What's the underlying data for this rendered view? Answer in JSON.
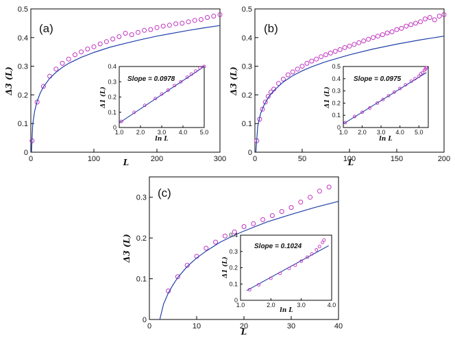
{
  "colors": {
    "theory": "#1f3fa8",
    "data": "#c030c0",
    "axis": "#000000"
  },
  "chart_data": [
    {
      "type": "scatter",
      "panel_label": "(a)",
      "xlabel": "L",
      "ylabel": "Δ3 (L)",
      "xlim": [
        0,
        300
      ],
      "ylim": [
        0,
        0.5
      ],
      "xticks": [
        "0",
        "100",
        "200",
        "300"
      ],
      "yticks": [
        "0",
        "0.1",
        "0.2",
        "0.3",
        "0.4",
        "0.5"
      ],
      "grid": false,
      "series": [
        {
          "kind": "markers",
          "x": [
            2,
            10,
            20,
            30,
            40,
            50,
            60,
            70,
            80,
            90,
            100,
            110,
            120,
            130,
            140,
            150,
            160,
            170,
            180,
            190,
            200,
            210,
            220,
            230,
            240,
            250,
            260,
            270,
            280,
            290,
            300
          ],
          "y": [
            0.04,
            0.175,
            0.23,
            0.265,
            0.29,
            0.31,
            0.325,
            0.34,
            0.35,
            0.36,
            0.368,
            0.378,
            0.386,
            0.395,
            0.403,
            0.415,
            0.41,
            0.418,
            0.425,
            0.428,
            0.435,
            0.44,
            0.443,
            0.448,
            0.45,
            0.455,
            0.46,
            0.463,
            0.47,
            0.475,
            0.48
          ]
        },
        {
          "kind": "line",
          "x": [
            1,
            3,
            6,
            10,
            15,
            20,
            30,
            40,
            50,
            60,
            80,
            100,
            125,
            150,
            175,
            200,
            225,
            250,
            275,
            300
          ],
          "y": [
            0.0,
            0.098,
            0.143,
            0.178,
            0.207,
            0.228,
            0.258,
            0.279,
            0.296,
            0.31,
            0.331,
            0.348,
            0.366,
            0.38,
            0.393,
            0.405,
            0.415,
            0.425,
            0.434,
            0.442
          ]
        }
      ],
      "inset": {
        "xlabel": "ln L",
        "ylabel": "Δ1 (L)",
        "xlim": [
          1.0,
          5.0
        ],
        "ylim": [
          0,
          0.4
        ],
        "xticks": [
          "1.0",
          "2.0",
          "3.0",
          "4.0",
          "5.0"
        ],
        "yticks": [
          "0",
          "0.1",
          "0.2",
          "0.3",
          "0.4"
        ],
        "annotation": "Slope = 0.0978",
        "line": {
          "x": [
            1.0,
            5.0
          ],
          "y": [
            0.03,
            0.4
          ]
        },
        "markers": {
          "x": [
            1.1,
            1.7,
            2.2,
            2.7,
            3.0,
            3.3,
            3.6,
            3.9,
            4.2,
            4.4,
            4.6,
            4.8,
            5.0
          ],
          "y": [
            0.04,
            0.1,
            0.145,
            0.19,
            0.22,
            0.245,
            0.275,
            0.3,
            0.33,
            0.35,
            0.37,
            0.39,
            0.4
          ]
        }
      }
    },
    {
      "type": "scatter",
      "panel_label": "(b)",
      "xlabel": "L",
      "ylabel": "Δ3 (L)",
      "xlim": [
        0,
        200
      ],
      "ylim": [
        0,
        0.5
      ],
      "xticks": [
        "0",
        "50",
        "100",
        "150",
        "200"
      ],
      "yticks": [
        "0",
        "0.1",
        "0.2",
        "0.3",
        "0.4",
        "0.5"
      ],
      "grid": false,
      "series": [
        {
          "kind": "markers",
          "x": [
            2,
            5,
            8,
            11,
            14,
            17,
            20,
            25,
            30,
            35,
            40,
            45,
            50,
            55,
            60,
            65,
            70,
            75,
            80,
            85,
            90,
            95,
            100,
            105,
            110,
            115,
            120,
            125,
            130,
            135,
            140,
            145,
            150,
            155,
            160,
            165,
            170,
            175,
            180,
            185,
            190,
            195,
            200
          ],
          "y": [
            0.04,
            0.115,
            0.15,
            0.175,
            0.195,
            0.21,
            0.22,
            0.24,
            0.255,
            0.27,
            0.28,
            0.29,
            0.3,
            0.31,
            0.318,
            0.325,
            0.333,
            0.34,
            0.346,
            0.352,
            0.358,
            0.365,
            0.37,
            0.376,
            0.382,
            0.388,
            0.394,
            0.4,
            0.405,
            0.41,
            0.416,
            0.42,
            0.428,
            0.432,
            0.44,
            0.445,
            0.45,
            0.455,
            0.465,
            0.47,
            0.462,
            0.475,
            0.48
          ]
        },
        {
          "kind": "line",
          "x": [
            1,
            3,
            6,
            10,
            15,
            20,
            30,
            40,
            50,
            60,
            75,
            100,
            125,
            150,
            175,
            200
          ],
          "y": [
            0.0,
            0.09,
            0.135,
            0.167,
            0.195,
            0.215,
            0.245,
            0.267,
            0.284,
            0.298,
            0.316,
            0.34,
            0.36,
            0.377,
            0.392,
            0.405
          ]
        }
      ],
      "inset": {
        "xlabel": "ln L",
        "ylabel": "Δ1 (L)",
        "xlim": [
          1.0,
          5.5
        ],
        "ylim": [
          0,
          0.5
        ],
        "xticks": [
          "1.0",
          "2.0",
          "3.0",
          "4.0",
          "5.0"
        ],
        "yticks": [
          "0",
          "0.1",
          "0.2",
          "0.3",
          "0.4",
          "0.5"
        ],
        "annotation": "Slope = 0.0975",
        "line": {
          "x": [
            1.0,
            5.4
          ],
          "y": [
            0.03,
            0.45
          ]
        },
        "markers": {
          "x": [
            1.1,
            1.6,
            2.0,
            2.4,
            2.8,
            3.1,
            3.4,
            3.7,
            4.0,
            4.3,
            4.6,
            4.8,
            5.0,
            5.1,
            5.2,
            5.3,
            5.35,
            5.4
          ],
          "y": [
            0.04,
            0.09,
            0.125,
            0.16,
            0.2,
            0.23,
            0.26,
            0.29,
            0.32,
            0.35,
            0.38,
            0.4,
            0.42,
            0.44,
            0.45,
            0.47,
            0.48,
            0.49
          ]
        }
      }
    },
    {
      "type": "scatter",
      "panel_label": "(c)",
      "xlabel": "L",
      "ylabel": "Δ3 (L)",
      "xlim": [
        0,
        40
      ],
      "ylim": [
        0,
        0.35
      ],
      "xticks": [
        "0",
        "10",
        "20",
        "30",
        "40"
      ],
      "yticks": [
        "0",
        "0.1",
        "0.2",
        "0.3"
      ],
      "grid": false,
      "series": [
        {
          "kind": "markers",
          "x": [
            4,
            6,
            8,
            10,
            12,
            14,
            16,
            18,
            20,
            22,
            24,
            26,
            28,
            30,
            32,
            34,
            36,
            38
          ],
          "y": [
            0.07,
            0.105,
            0.133,
            0.155,
            0.175,
            0.19,
            0.205,
            0.215,
            0.228,
            0.235,
            0.245,
            0.255,
            0.265,
            0.275,
            0.288,
            0.3,
            0.315,
            0.325
          ]
        },
        {
          "kind": "line",
          "x": [
            2.2,
            3,
            4,
            5,
            6,
            8,
            10,
            12,
            15,
            18,
            20,
            25,
            30,
            35,
            40
          ],
          "y": [
            0.0,
            0.038,
            0.065,
            0.085,
            0.103,
            0.13,
            0.151,
            0.168,
            0.19,
            0.207,
            0.217,
            0.24,
            0.258,
            0.275,
            0.29
          ]
        }
      ],
      "inset": {
        "xlabel": "ln L",
        "ylabel": "Δ1 (L)",
        "xlim": [
          1.0,
          4.0
        ],
        "ylim": [
          0,
          0.4
        ],
        "xticks": [
          "1.0",
          "2.0",
          "3.0",
          "4.0"
        ],
        "yticks": [
          "0",
          "0.1",
          "0.2",
          "0.3",
          "0.4"
        ],
        "annotation": "Slope = 0.1024",
        "line": {
          "x": [
            1.2,
            3.9
          ],
          "y": [
            0.06,
            0.335
          ]
        },
        "markers": {
          "x": [
            1.3,
            1.6,
            2.0,
            2.3,
            2.6,
            2.8,
            3.0,
            3.2,
            3.35,
            3.5,
            3.6,
            3.7,
            3.75
          ],
          "y": [
            0.065,
            0.095,
            0.135,
            0.165,
            0.195,
            0.215,
            0.24,
            0.265,
            0.285,
            0.31,
            0.33,
            0.355,
            0.37
          ]
        }
      }
    }
  ]
}
